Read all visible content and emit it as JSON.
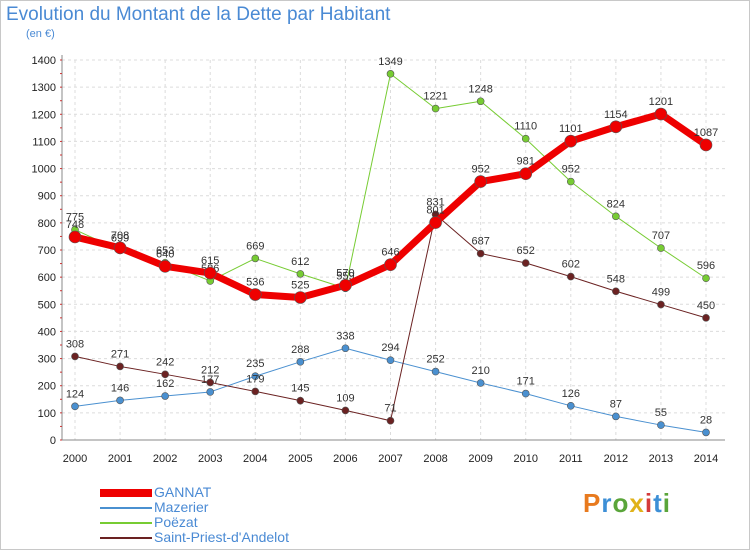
{
  "title": "Evolution du Montant de la Dette par Habitant",
  "subtitle": "(en €)",
  "brand": {
    "text": "Proxiti",
    "colors": [
      "#e87a1e",
      "#3d8fd6",
      "#5aa53a",
      "#e0b21a",
      "#d43a3a",
      "#3d8fd6",
      "#5aa53a"
    ]
  },
  "chart_data": {
    "type": "line",
    "title": "Evolution du Montant de la Dette par Habitant",
    "ylabel": "(en €)",
    "xlabel": "",
    "ylim": [
      0,
      1400
    ],
    "yticks": [
      0,
      100,
      200,
      300,
      400,
      500,
      600,
      700,
      800,
      900,
      1000,
      1100,
      1200,
      1300,
      1400
    ],
    "grid": true,
    "legend": "bottom-left",
    "categories": [
      "2000",
      "2001",
      "2002",
      "2003",
      "2004",
      "2005",
      "2006",
      "2007",
      "2008",
      "2009",
      "2010",
      "2011",
      "2012",
      "2013",
      "2014"
    ],
    "series": [
      {
        "name": "GANNAT",
        "color": "#ee0000",
        "width": 7,
        "values": [
          748,
          708,
          640,
          615,
          536,
          525,
          570,
          646,
          801,
          952,
          981,
          1101,
          1154,
          1201,
          1087
        ]
      },
      {
        "name": "Mazerier",
        "color": "#4a90d0",
        "width": 1,
        "values": [
          124,
          146,
          162,
          177,
          235,
          288,
          338,
          294,
          252,
          210,
          171,
          126,
          87,
          55,
          28
        ]
      },
      {
        "name": "Poëzat",
        "color": "#77cc33",
        "width": 1,
        "values": [
          775,
          699,
          653,
          586,
          669,
          612,
          559,
          1349,
          1221,
          1248,
          1110,
          952,
          824,
          707,
          596
        ]
      },
      {
        "name": "Saint-Priest-d'Andelot",
        "color": "#6b2222",
        "width": 1,
        "values": [
          308,
          271,
          242,
          212,
          179,
          145,
          109,
          71,
          831,
          687,
          652,
          602,
          548,
          499,
          450
        ]
      }
    ]
  }
}
